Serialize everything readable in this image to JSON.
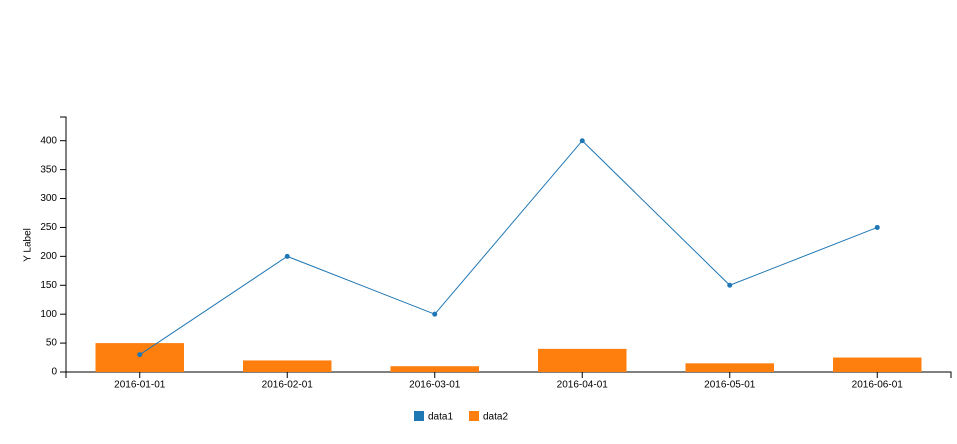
{
  "chart_data": {
    "type": "combo",
    "y_label": "Y Label",
    "categories": [
      "2016-01-01",
      "2016-02-01",
      "2016-03-01",
      "2016-04-01",
      "2016-05-01",
      "2016-06-01"
    ],
    "series": [
      {
        "name": "data1",
        "type": "line",
        "color": "#1f77b4",
        "values": [
          30,
          200,
          100,
          400,
          150,
          250
        ]
      },
      {
        "name": "data2",
        "type": "bar",
        "color": "#ff7f0e",
        "values": [
          50,
          20,
          10,
          40,
          15,
          25
        ]
      }
    ],
    "ylim": [
      0,
      441
    ],
    "yticks": [
      0,
      50,
      100,
      150,
      200,
      250,
      300,
      350,
      400
    ],
    "grid": false
  }
}
